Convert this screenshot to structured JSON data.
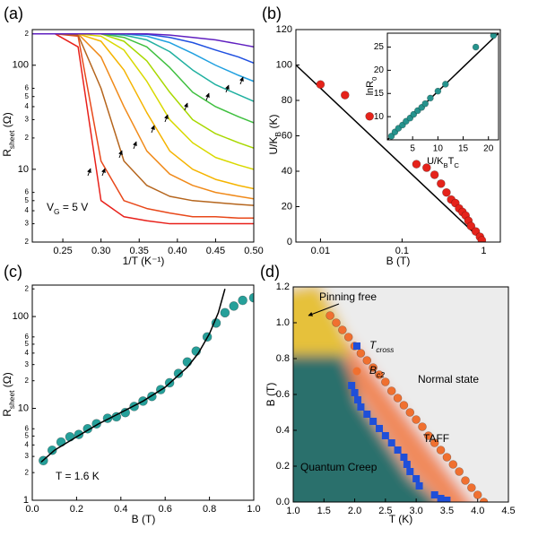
{
  "chart_data": [
    {
      "type": "line",
      "panel_label": "(a)",
      "x_label": "1/T (K⁻¹)",
      "y_label": [
        "R",
        "sheet",
        " (Ω)"
      ],
      "ylog": true,
      "xlim": [
        0.21,
        0.5
      ],
      "ylim": [
        2,
        220
      ],
      "xticks": [
        0.25,
        {
          "value": 0.3,
          "label": "0.30"
        },
        0.35,
        {
          "value": 0.4,
          "label": "0.40"
        },
        0.45,
        {
          "value": 0.5,
          "label": "0.50"
        }
      ],
      "yticks": [
        2,
        3,
        4,
        5,
        6,
        10,
        {
          "value": 20,
          "label": "2"
        },
        {
          "value": 30,
          "label": "3"
        },
        {
          "value": 40,
          "label": "4"
        },
        {
          "value": 50,
          "label": "5"
        },
        {
          "value": 60,
          "label": "6"
        },
        100,
        {
          "value": 200,
          "label": "2"
        }
      ],
      "annotations": [
        [
          "V",
          "G",
          " = 5 V"
        ]
      ],
      "x": [
        0.21,
        0.24,
        0.27,
        0.3,
        0.33,
        0.36,
        0.39,
        0.42,
        0.45,
        0.48,
        0.5
      ],
      "series": [
        {
          "mark": "line",
          "color": "#e8201a",
          "values": [
            200,
            200,
            150,
            5,
            3.5,
            3.2,
            3,
            3,
            3,
            3,
            3
          ]
        },
        {
          "mark": "line",
          "color": "#e8481a",
          "values": [
            200,
            200,
            190,
            12,
            5,
            4.2,
            3.8,
            3.5,
            3.5,
            3.4,
            3.4
          ]
        },
        {
          "mark": "line",
          "color": "#b5651d",
          "values": [
            200,
            200,
            195,
            60,
            12,
            7,
            5.5,
            5,
            4.8,
            4.6,
            4.5
          ]
        },
        {
          "mark": "line",
          "color": "#f08a1a",
          "values": [
            200,
            200,
            200,
            120,
            40,
            15,
            9,
            7,
            6,
            5.5,
            5.2
          ]
        },
        {
          "mark": "line",
          "color": "#f5b400",
          "values": [
            200,
            200,
            200,
            170,
            90,
            35,
            15,
            10,
            8,
            7,
            6.5
          ]
        },
        {
          "mark": "line",
          "color": "#d9d900",
          "values": [
            200,
            200,
            200,
            190,
            140,
            70,
            30,
            18,
            13,
            11,
            10
          ]
        },
        {
          "mark": "line",
          "color": "#a8d800",
          "values": [
            200,
            200,
            200,
            200,
            170,
            110,
            55,
            30,
            22,
            18,
            16
          ]
        },
        {
          "mark": "line",
          "color": "#40c040",
          "values": [
            200,
            200,
            200,
            200,
            185,
            150,
            95,
            55,
            40,
            32,
            28
          ]
        },
        {
          "mark": "line",
          "color": "#20b0a0",
          "values": [
            200,
            200,
            200,
            200,
            195,
            175,
            135,
            90,
            65,
            52,
            45
          ]
        },
        {
          "mark": "line",
          "color": "#20a0e0",
          "values": [
            200,
            200,
            200,
            200,
            200,
            190,
            165,
            130,
            100,
            80,
            70
          ]
        },
        {
          "mark": "line",
          "color": "#2050e0",
          "values": [
            200,
            200,
            200,
            200,
            200,
            198,
            185,
            165,
            140,
            120,
            105
          ]
        },
        {
          "mark": "line",
          "color": "#6020c0",
          "values": [
            200,
            200,
            200,
            200,
            200,
            200,
            195,
            185,
            175,
            160,
            150
          ]
        }
      ]
    },
    {
      "type": "scatter",
      "panel_label": "(b)",
      "x_label": "B (T)",
      "y_label": [
        "U/K",
        "B",
        " (K)"
      ],
      "xlog": true,
      "xlim": [
        0.005,
        1.6
      ],
      "ylim": [
        0,
        120
      ],
      "xticks": [
        0.01,
        0.1,
        1
      ],
      "yticks": [
        0,
        20,
        40,
        60,
        80,
        100,
        120
      ],
      "series": [
        {
          "mark": "line",
          "color": "#000000",
          "x": [
            0.005,
            1
          ],
          "values": [
            100,
            0
          ]
        },
        {
          "mark": "circle",
          "color": "#e5231b",
          "x": [
            0.01,
            0.02,
            0.04,
            0.15,
            0.2,
            0.25,
            0.3,
            0.35,
            0.4,
            0.45,
            0.5,
            0.55,
            0.6,
            0.65,
            0.7,
            0.8,
            0.9,
            0.95
          ],
          "values": [
            89,
            83,
            71,
            44,
            42,
            38,
            33,
            28,
            24,
            22,
            19,
            17,
            15,
            12,
            9,
            6,
            3,
            1
          ]
        }
      ]
    },
    {
      "type": "scatter",
      "x_label": [
        "U/K",
        "B",
        "T",
        "C"
      ],
      "y_label": [
        "lnR",
        "0"
      ],
      "xlim": [
        0,
        22
      ],
      "ylim": [
        5,
        28
      ],
      "xticks": [
        5,
        10,
        15,
        20
      ],
      "yticks": [
        10,
        15,
        20,
        25
      ],
      "series": [
        {
          "mark": "line",
          "color": "#000000",
          "x": [
            0,
            22
          ],
          "values": [
            5,
            28
          ]
        },
        {
          "mark": "circle",
          "color": "#26938d",
          "x": [
            0.8,
            1.5,
            2.2,
            3,
            3.7,
            4.5,
            5.2,
            6,
            6.8,
            7.5,
            8.5,
            10,
            11.5,
            17.5,
            21
          ],
          "values": [
            5.8,
            6.7,
            7.5,
            8.2,
            9,
            9.7,
            10.5,
            11.3,
            12,
            12.8,
            14,
            15.5,
            17,
            25,
            27.5
          ]
        }
      ]
    },
    {
      "type": "scatter",
      "panel_label": "(c)",
      "x_label": "B (T)",
      "y_label": [
        "R",
        "sheet",
        " (Ω)"
      ],
      "ylog": true,
      "xlim": [
        0,
        1
      ],
      "ylim": [
        1,
        220
      ],
      "xticks": [
        {
          "value": 0,
          "label": "0.0"
        },
        0.2,
        0.4,
        0.6,
        0.8,
        {
          "value": 1,
          "label": "1.0"
        }
      ],
      "yticks": [
        1,
        2,
        3,
        4,
        5,
        6,
        10,
        {
          "value": 20,
          "label": "2"
        },
        {
          "value": 30,
          "label": "3"
        },
        {
          "value": 40,
          "label": "4"
        },
        {
          "value": 50,
          "label": "5"
        },
        {
          "value": 60,
          "label": "6"
        },
        100,
        {
          "value": 200,
          "label": "2"
        }
      ],
      "annotations": [
        "T = 1.6 K"
      ],
      "series": [
        {
          "mark": "circle",
          "color": "#26a09a",
          "x": [
            0.05,
            0.09,
            0.13,
            0.17,
            0.21,
            0.25,
            0.29,
            0.34,
            0.38,
            0.42,
            0.46,
            0.5,
            0.54,
            0.58,
            0.62,
            0.66,
            0.7,
            0.74,
            0.79,
            0.83,
            0.87,
            0.91,
            0.95,
            1.0
          ],
          "values": [
            2.7,
            3.5,
            4.3,
            4.9,
            5.2,
            6,
            6.8,
            7.8,
            8.1,
            9,
            10.5,
            12,
            13.5,
            16,
            19,
            24,
            32,
            42,
            60,
            85,
            110,
            130,
            150,
            160
          ]
        },
        {
          "mark": "line",
          "color": "#000000",
          "x": [
            0.04,
            0.1,
            0.2,
            0.3,
            0.4,
            0.5,
            0.6,
            0.7,
            0.75,
            0.8,
            0.84,
            0.87
          ],
          "values": [
            2.6,
            3.5,
            4.9,
            6.8,
            9,
            12,
            17,
            28,
            40,
            65,
            110,
            200
          ]
        }
      ]
    },
    {
      "type": "scatter",
      "panel_label": "(d)",
      "x_label": "T (K)",
      "y_label": "B (T)",
      "xlim": [
        1,
        4.5
      ],
      "ylim": [
        0,
        1.2
      ],
      "xticks": [
        {
          "value": 1,
          "label": "1.0"
        },
        1.5,
        {
          "value": 2,
          "label": "2.0"
        },
        2.5,
        {
          "value": 3,
          "label": "3.0"
        },
        3.5,
        {
          "value": 4,
          "label": "4.0"
        },
        4.5
      ],
      "yticks": [
        {
          "value": 0,
          "label": "0.0"
        },
        0.2,
        0.4,
        0.6,
        0.8,
        {
          "value": 1,
          "label": "1.0"
        },
        1.2
      ],
      "annotations": [
        "Pinning free",
        "Normal state",
        "TAFF",
        "Quantum Creep"
      ],
      "series": [
        {
          "name": [
            "T",
            "cross"
          ],
          "mark": "square",
          "color": "#1f4fd8",
          "x": [
            1.95,
            2.0,
            2.05,
            2.1,
            2.2,
            2.3,
            2.4,
            2.5,
            2.6,
            2.7,
            2.8,
            2.85,
            2.9,
            3.0,
            3.05,
            3.3,
            3.4,
            3.5
          ],
          "values": [
            0.65,
            0.61,
            0.57,
            0.53,
            0.49,
            0.45,
            0.41,
            0.37,
            0.33,
            0.29,
            0.25,
            0.21,
            0.17,
            0.13,
            0.09,
            0.04,
            0.02,
            0.01
          ]
        },
        {
          "name": [
            "B",
            "c2"
          ],
          "mark": "circle",
          "color": "#f07030",
          "x": [
            1.6,
            1.7,
            1.8,
            1.9,
            2.0,
            2.1,
            2.2,
            2.3,
            2.4,
            2.5,
            2.6,
            2.7,
            2.8,
            2.9,
            3.0,
            3.1,
            3.2,
            3.3,
            3.4,
            3.5,
            3.6,
            3.7,
            3.8,
            3.9,
            4.0,
            4.1
          ],
          "values": [
            1.04,
            1.0,
            0.96,
            0.92,
            0.87,
            0.83,
            0.79,
            0.75,
            0.71,
            0.67,
            0.62,
            0.58,
            0.54,
            0.5,
            0.46,
            0.42,
            0.37,
            0.33,
            0.29,
            0.25,
            0.21,
            0.17,
            0.12,
            0.08,
            0.04,
            0.0
          ]
        }
      ]
    }
  ]
}
